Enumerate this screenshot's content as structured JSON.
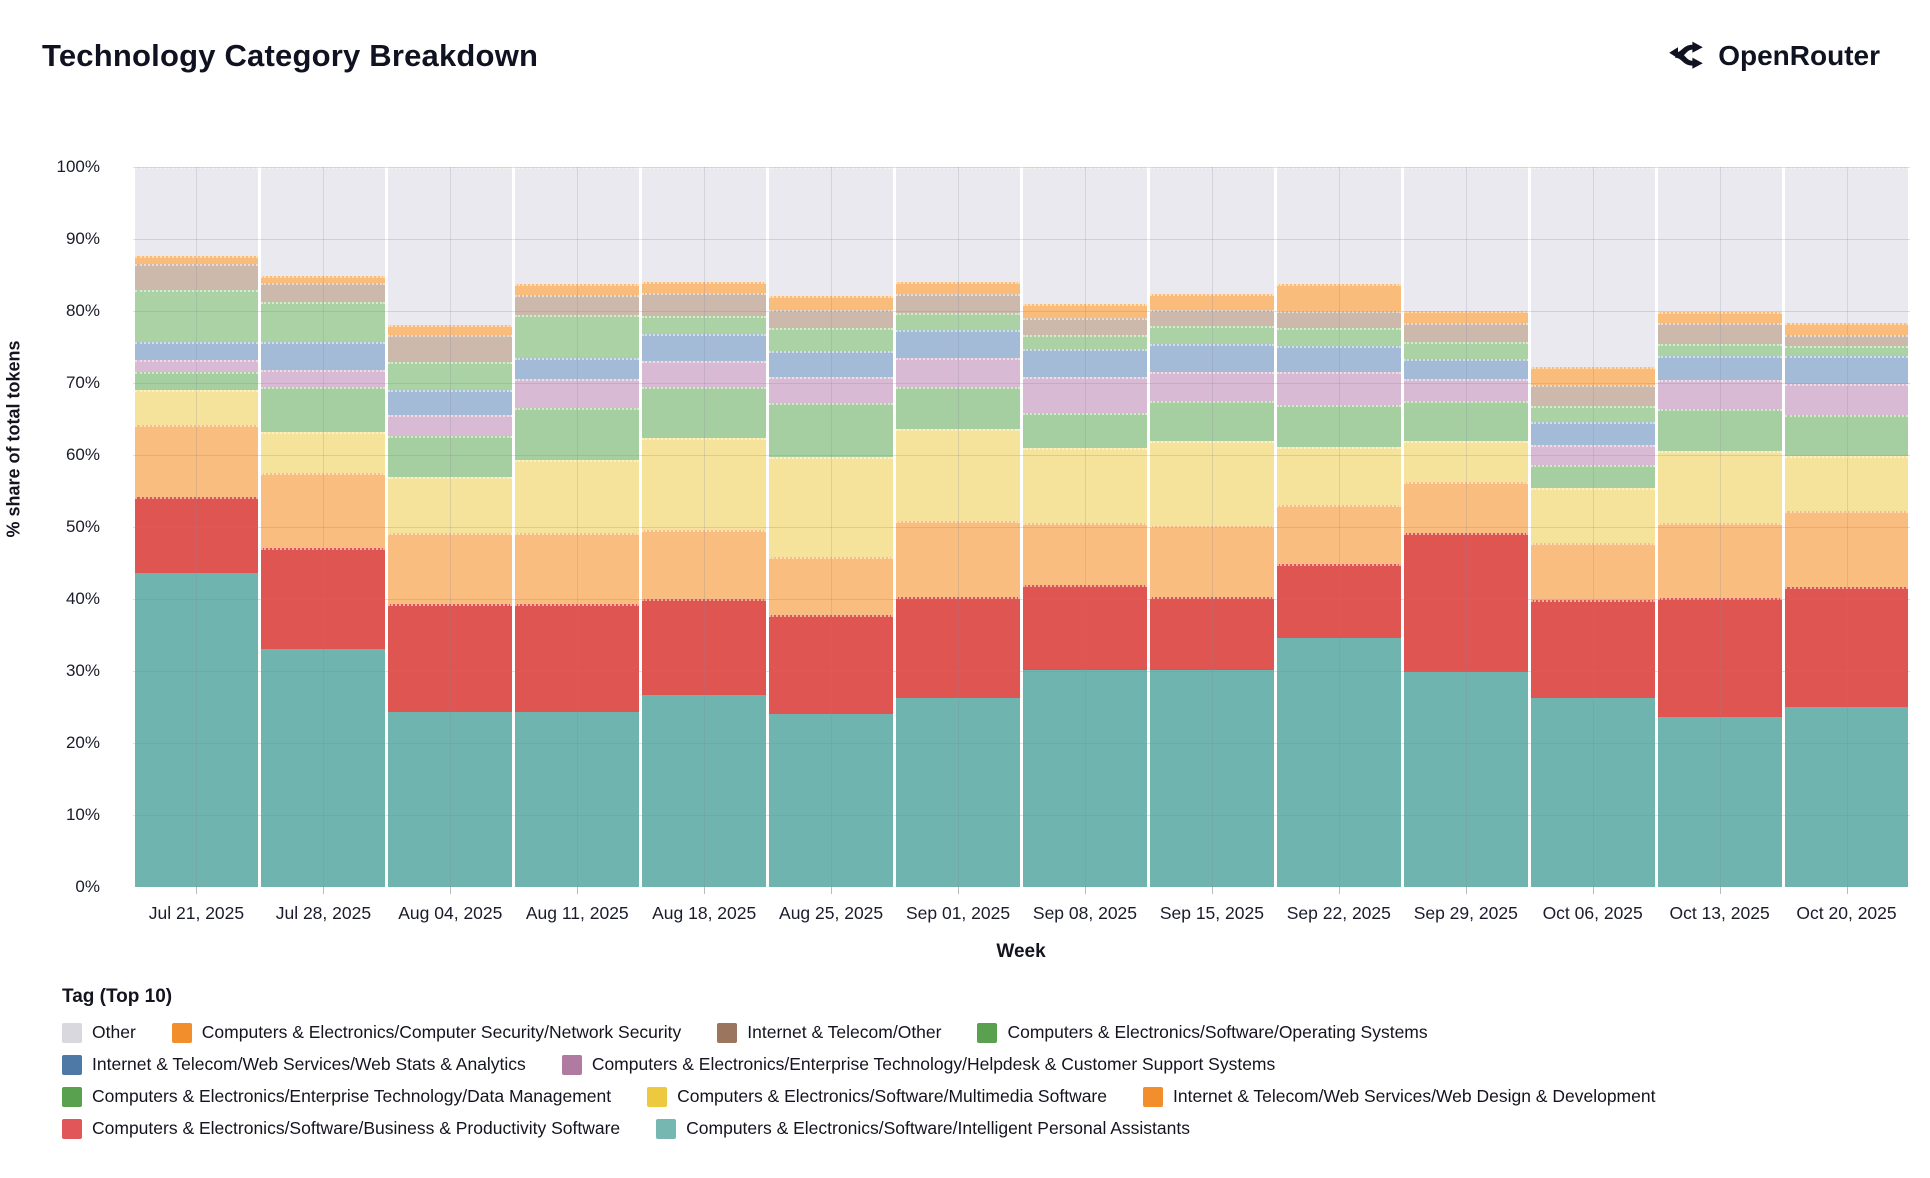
{
  "header": {
    "title": "Technology Category Breakdown",
    "brand": "OpenRouter"
  },
  "axes": {
    "y_title": "% share of total tokens",
    "x_title": "Week",
    "y_ticks": [
      "0%",
      "10%",
      "20%",
      "30%",
      "40%",
      "50%",
      "60%",
      "70%",
      "80%",
      "90%",
      "100%"
    ]
  },
  "legend_title": "Tag (Top 10)",
  "chart_data": {
    "type": "bar",
    "stacked": true,
    "title": "Technology Category Breakdown",
    "xlabel": "Week",
    "ylabel": "% share of total tokens",
    "ylim": [
      0,
      100
    ],
    "grid": true,
    "legend_position": "bottom",
    "categories": [
      "Jul 21, 2025",
      "Jul 28, 2025",
      "Aug 04, 2025",
      "Aug 11, 2025",
      "Aug 18, 2025",
      "Aug 25, 2025",
      "Sep 01, 2025",
      "Sep 08, 2025",
      "Sep 15, 2025",
      "Sep 22, 2025",
      "Sep 29, 2025",
      "Oct 06, 2025",
      "Oct 13, 2025",
      "Oct 20, 2025"
    ],
    "series": [
      {
        "id": "ipa",
        "name": "Computers & Electronics/Software/Intelligent Personal Assistants",
        "bar_color": "#6FB4AE",
        "swatch_color": "#76B7B2",
        "pattern": "none",
        "values": [
          43.6,
          33.0,
          24.3,
          24.3,
          26.7,
          24.0,
          26.3,
          30.2,
          30.1,
          34.6,
          29.9,
          26.2,
          23.6,
          25.0
        ]
      },
      {
        "id": "bizprod",
        "name": "Computers & Electronics/Software/Business & Productivity Software",
        "bar_color": "#DF5552",
        "swatch_color": "#E15759",
        "pattern": "none",
        "values": [
          10.6,
          14.1,
          15.0,
          15.0,
          13.3,
          13.8,
          14.0,
          11.8,
          10.2,
          10.3,
          19.3,
          13.6,
          16.5,
          16.7
        ]
      },
      {
        "id": "webdesign",
        "name": "Internet & Telecom/Web Services/Web Design & Development",
        "bar_color": "#F9BD80",
        "swatch_color": "#F28E2B",
        "pattern": "none",
        "values": [
          10.0,
          10.4,
          9.9,
          9.9,
          9.6,
          8.1,
          10.5,
          8.5,
          9.9,
          8.2,
          7.0,
          8.0,
          10.4,
          10.5
        ]
      },
      {
        "id": "multimedia",
        "name": "Computers & Electronics/Software/Multimedia Software",
        "bar_color": "#F5E39B",
        "swatch_color": "#EDC93F",
        "pattern": "none",
        "values": [
          4.8,
          5.7,
          7.7,
          10.1,
          12.7,
          13.8,
          12.8,
          10.5,
          11.8,
          8.0,
          5.8,
          7.6,
          10.1,
          7.7
        ]
      },
      {
        "id": "datamgmt",
        "name": "Computers & Electronics/Enterprise Technology/Data Management",
        "bar_color": "#A6CFA1",
        "swatch_color": "#59A14F",
        "pattern": "none",
        "values": [
          2.5,
          6.2,
          5.7,
          7.2,
          7.1,
          7.5,
          5.9,
          4.9,
          5.5,
          5.8,
          5.5,
          3.2,
          5.8,
          5.7
        ]
      },
      {
        "id": "helpdesk",
        "name": "Computers & Electronics/Enterprise Technology/Helpdesk & Customer Support Systems",
        "bar_color": "#D9BAD5",
        "swatch_color": "#B07AA1",
        "pattern": "dots-yellow",
        "values": [
          1.7,
          2.4,
          2.9,
          4.0,
          3.7,
          3.6,
          4.0,
          4.9,
          4.1,
          4.7,
          3.1,
          2.8,
          4.0,
          4.2
        ]
      },
      {
        "id": "webstats",
        "name": "Internet & Telecom/Web Services/Web Stats & Analytics",
        "bar_color": "#A3BBD7",
        "swatch_color": "#4E79A7",
        "pattern": "none",
        "values": [
          2.5,
          3.9,
          3.5,
          3.0,
          3.7,
          3.6,
          3.9,
          3.9,
          3.8,
          3.5,
          2.8,
          3.2,
          3.4,
          4.0
        ]
      },
      {
        "id": "os",
        "name": "Computers & Electronics/Software/Operating Systems",
        "bar_color": "#ABD2A5",
        "swatch_color": "#59A14F",
        "pattern": "none",
        "values": [
          7.2,
          5.6,
          3.9,
          5.9,
          2.5,
          3.3,
          2.3,
          2.0,
          2.5,
          2.6,
          2.3,
          2.2,
          1.6,
          1.3
        ]
      },
      {
        "id": "itother",
        "name": "Internet & Telecom/Other",
        "bar_color": "#CDB9AC",
        "swatch_color": "#9C755F",
        "pattern": "dots-subtle",
        "values": [
          3.6,
          2.6,
          3.8,
          2.9,
          3.2,
          2.4,
          2.6,
          2.3,
          2.2,
          2.3,
          2.7,
          3.0,
          3.0,
          1.6
        ]
      },
      {
        "id": "netsec",
        "name": "Computers & Electronics/Computer Security/Network Security",
        "bar_color": "#F9BC7B",
        "swatch_color": "#F28E2B",
        "pattern": "none",
        "values": [
          1.1,
          1.0,
          1.4,
          1.5,
          1.5,
          2.0,
          1.7,
          2.0,
          2.3,
          3.8,
          1.6,
          2.5,
          1.5,
          1.7
        ]
      },
      {
        "id": "other",
        "name": "Other",
        "bar_color": "#E9E9EF",
        "swatch_color": "#D8D8DE",
        "pattern": "none",
        "values": [
          12.4,
          15.1,
          21.9,
          16.2,
          16.0,
          17.9,
          16.0,
          19.0,
          17.6,
          16.2,
          20.0,
          27.7,
          20.1,
          21.6
        ]
      }
    ],
    "legend_rows": [
      [
        "other",
        "netsec",
        "itother",
        "os"
      ],
      [
        "webstats",
        "helpdesk"
      ],
      [
        "datamgmt",
        "multimedia",
        "webdesign"
      ],
      [
        "bizprod",
        "ipa"
      ]
    ]
  }
}
